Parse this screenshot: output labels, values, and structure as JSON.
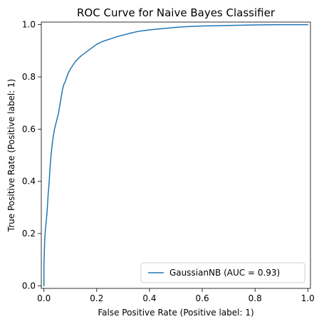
{
  "chart_data": {
    "type": "line",
    "title": "ROC Curve for Naive Bayes Classifier",
    "xlabel": "False Positive Rate (Positive label: 1)",
    "ylabel": "True Positive Rate (Positive label: 1)",
    "xlim": [
      -0.01,
      1.01
    ],
    "ylim": [
      -0.01,
      1.01
    ],
    "xticks": [
      0.0,
      0.2,
      0.4,
      0.6,
      0.8,
      1.0
    ],
    "yticks": [
      0.0,
      0.2,
      0.4,
      0.6,
      0.8,
      1.0
    ],
    "xtick_labels": [
      "0.0",
      "0.2",
      "0.4",
      "0.6",
      "0.8",
      "1.0"
    ],
    "ytick_labels": [
      "0.0",
      "0.2",
      "0.4",
      "0.6",
      "0.8",
      "1.0"
    ],
    "grid": false,
    "legend_position": "lower right",
    "series": [
      {
        "name": "GaussianNB (AUC = 0.93)",
        "color": "#1f77b4",
        "x": [
          0.0,
          0.0,
          0.003,
          0.006,
          0.01,
          0.013,
          0.016,
          0.02,
          0.023,
          0.027,
          0.03,
          0.035,
          0.04,
          0.045,
          0.05,
          0.055,
          0.06,
          0.065,
          0.07,
          0.075,
          0.08,
          0.09,
          0.1,
          0.11,
          0.12,
          0.13,
          0.14,
          0.16,
          0.18,
          0.2,
          0.22,
          0.25,
          0.28,
          0.3,
          0.33,
          0.36,
          0.4,
          0.45,
          0.5,
          0.55,
          0.6,
          0.7,
          0.8,
          0.9,
          1.0
        ],
        "y": [
          0.0,
          0.08,
          0.18,
          0.22,
          0.26,
          0.3,
          0.35,
          0.4,
          0.45,
          0.5,
          0.53,
          0.57,
          0.6,
          0.62,
          0.64,
          0.66,
          0.69,
          0.72,
          0.75,
          0.77,
          0.78,
          0.81,
          0.83,
          0.845,
          0.86,
          0.87,
          0.88,
          0.895,
          0.91,
          0.925,
          0.935,
          0.945,
          0.955,
          0.96,
          0.968,
          0.975,
          0.98,
          0.985,
          0.99,
          0.993,
          0.995,
          0.997,
          0.999,
          1.0,
          1.0
        ]
      }
    ]
  }
}
